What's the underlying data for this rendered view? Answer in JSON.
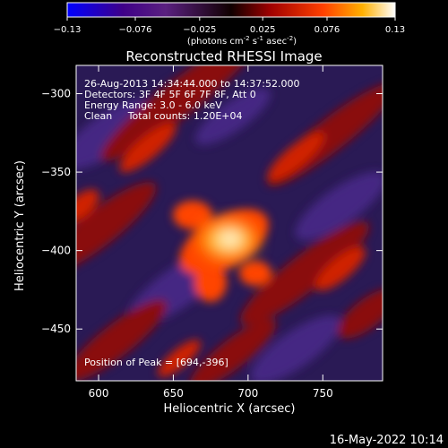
{
  "colorbar": {
    "ticks": [
      "-0.13",
      "-0.076",
      "-0.025",
      "0.025",
      "0.076",
      "0.13"
    ],
    "min": -0.13,
    "max": 0.13,
    "units_label": "(photons cm",
    "units_exp1": "-2",
    "units_mid": " s",
    "units_exp2": "-1",
    "units_tail": " asec",
    "units_exp3": "-2",
    "units_close": ")"
  },
  "chart_data": {
    "type": "heatmap",
    "title": "Reconstructed RHESSI Image",
    "xlabel": "Heliocentric X (arcsec)",
    "ylabel": "Heliocentric Y (arcsec)",
    "xlim": [
      585,
      790
    ],
    "ylim": [
      -483,
      -282
    ],
    "x_ticks": [
      600,
      650,
      700,
      750
    ],
    "y_ticks": [
      -300,
      -350,
      -400,
      -450
    ],
    "x_tick_labels": [
      "600",
      "650",
      "700",
      "750"
    ],
    "y_tick_labels": [
      "−300",
      "−350",
      "−400",
      "−450"
    ],
    "peak": [
      694,
      -396
    ],
    "annotations": [
      "26-Aug-2013 14:34:44.000 to 14:37:52.000",
      "Detectors: 3F 4F 5F 6F 7F 8F, Att 0",
      "Energy Range: 3.0 - 6.0 keV",
      "Clean     Total counts: 1.20E+04"
    ],
    "peak_text": "Position of Peak = [694,-396]"
  },
  "footer": {
    "date": "16-May-2022 10:14"
  }
}
